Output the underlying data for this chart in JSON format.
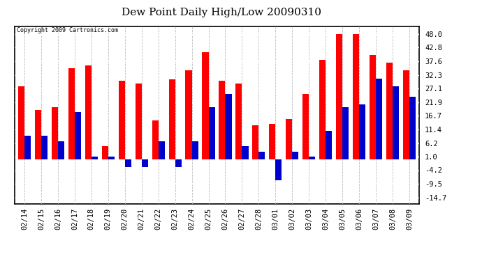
{
  "title": "Dew Point Daily High/Low 20090310",
  "copyright": "Copyright 2009 Cartronics.com",
  "dates": [
    "02/14",
    "02/15",
    "02/16",
    "02/17",
    "02/18",
    "02/19",
    "02/20",
    "02/21",
    "02/22",
    "02/23",
    "02/24",
    "02/25",
    "02/26",
    "02/27",
    "02/28",
    "03/01",
    "03/02",
    "03/03",
    "03/04",
    "03/05",
    "03/06",
    "03/07",
    "03/08",
    "03/09"
  ],
  "high": [
    28.0,
    19.0,
    20.0,
    35.0,
    36.0,
    5.0,
    30.0,
    29.0,
    15.0,
    30.5,
    34.0,
    41.0,
    30.0,
    29.0,
    13.0,
    13.5,
    15.5,
    25.0,
    38.0,
    48.0,
    48.0,
    40.0,
    37.0,
    34.0
  ],
  "low": [
    9.0,
    9.0,
    7.0,
    18.0,
    1.0,
    1.0,
    -3.0,
    -3.0,
    7.0,
    -3.0,
    7.0,
    20.0,
    25.0,
    5.0,
    3.0,
    -8.0,
    3.0,
    1.0,
    11.0,
    20.0,
    21.0,
    31.0,
    28.0,
    24.0
  ],
  "high_color": "#ff0000",
  "low_color": "#0000cc",
  "bg_color": "#ffffff",
  "plot_bg_color": "#ffffff",
  "grid_color_h": "#ffffff",
  "grid_color_v": "#bbbbbb",
  "yticks": [
    -14.7,
    -9.5,
    -4.2,
    1.0,
    6.2,
    11.4,
    16.7,
    21.9,
    27.1,
    32.3,
    37.6,
    42.8,
    48.0
  ],
  "ytick_labels": [
    "-14.7",
    "-9.5",
    "-4.2",
    "1.0",
    "6.2",
    "11.4",
    "16.7",
    "21.9",
    "27.1",
    "32.3",
    "37.6",
    "42.8",
    "48.0"
  ],
  "ylim": [
    -17.0,
    51.0
  ],
  "bar_width": 0.38,
  "figsize": [
    6.9,
    3.75
  ],
  "dpi": 100
}
